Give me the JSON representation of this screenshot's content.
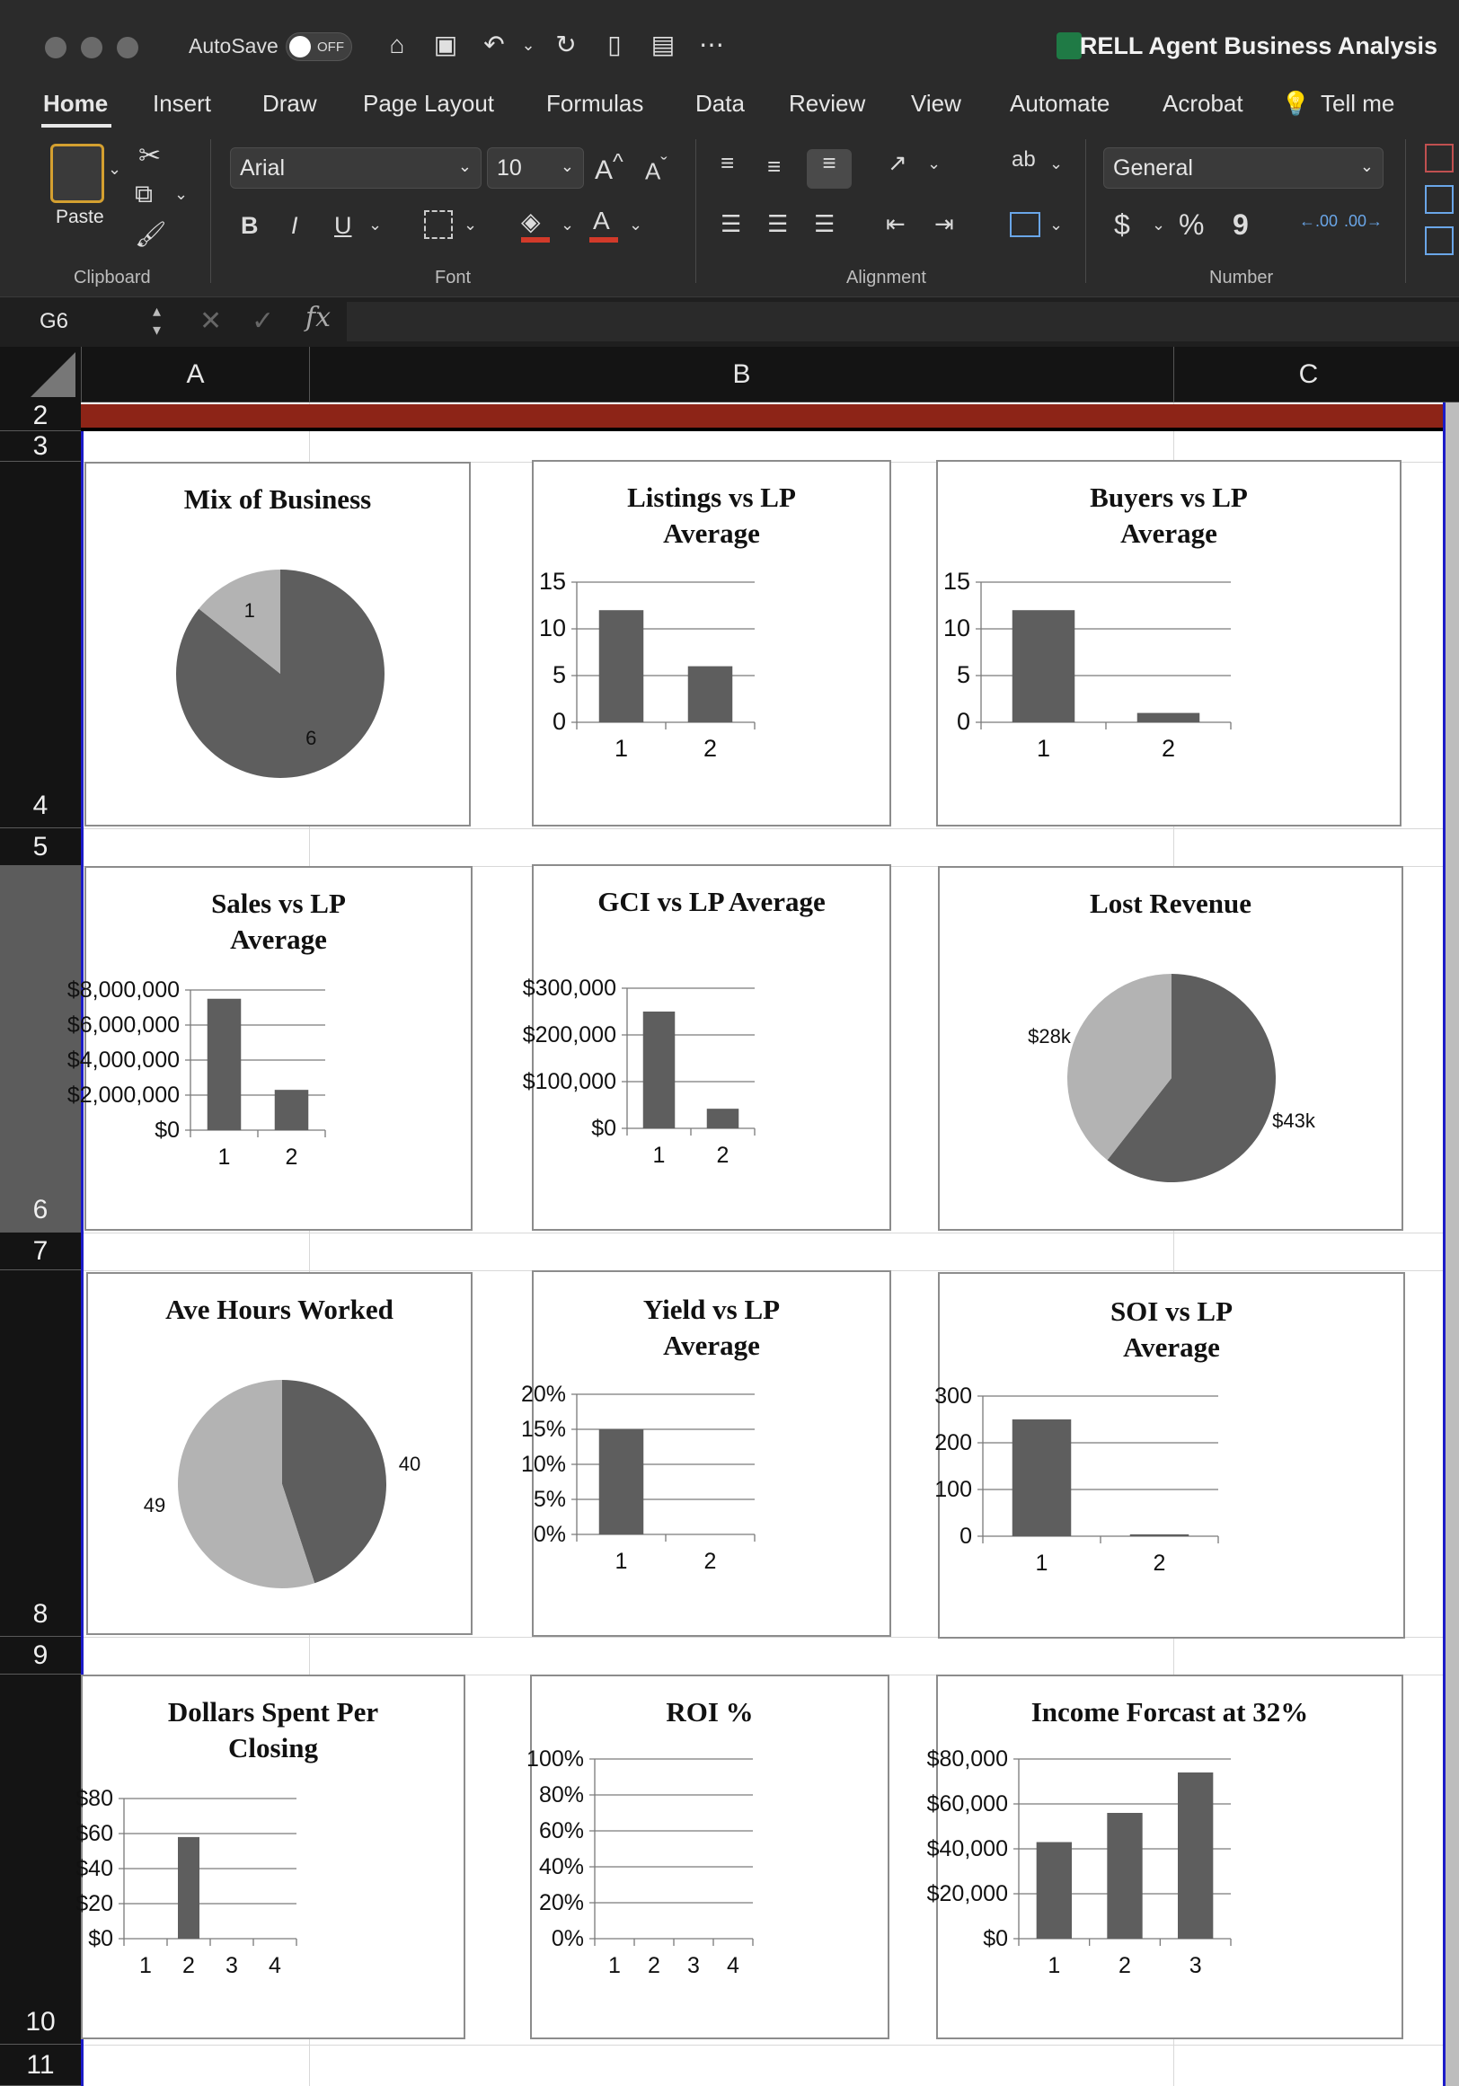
{
  "titlebar": {
    "autosave_label": "AutoSave",
    "autosave_state": "OFF",
    "doc_title": "RELL Agent Business Analysis",
    "quick_access": [
      "home-icon",
      "save-icon",
      "undo-icon",
      "redo-icon",
      "new-file-icon",
      "save-as-icon",
      "more-icon"
    ]
  },
  "menu": {
    "tabs": [
      "Home",
      "Insert",
      "Draw",
      "Page Layout",
      "Formulas",
      "Data",
      "Review",
      "View",
      "Automate",
      "Acrobat"
    ],
    "active": "Home",
    "tell_me": "Tell me"
  },
  "ribbon": {
    "clipboard": {
      "paste_label": "Paste",
      "group_label": "Clipboard"
    },
    "font": {
      "family": "Arial",
      "size": "10",
      "bold": "B",
      "italic": "I",
      "underline": "U",
      "group_label": "Font"
    },
    "alignment": {
      "group_label": "Alignment"
    },
    "number": {
      "format": "General",
      "currency": "$",
      "percent": "%",
      "comma": "9",
      "group_label": "Number"
    }
  },
  "formula_bar": {
    "name_box": "G6",
    "fx": "fx",
    "formula": ""
  },
  "columns": [
    "A",
    "B",
    "C"
  ],
  "rows": [
    "2",
    "3",
    "4",
    "5",
    "6",
    "7",
    "8",
    "9",
    "10",
    "11"
  ],
  "colors": {
    "bar": "#5e5e5e",
    "pie_dark": "#5e5e5e",
    "pie_light": "#b3b3b3",
    "header_band": "#8d2417",
    "selection": "#1c1cc8"
  },
  "chart_data": [
    {
      "id": "mix",
      "type": "pie",
      "title": "Mix of Business",
      "values": [
        6,
        1
      ],
      "labels": [
        "6",
        "1"
      ]
    },
    {
      "id": "listings",
      "type": "bar",
      "title": "Listings vs LP Average",
      "categories": [
        "1",
        "2"
      ],
      "values": [
        12,
        6
      ],
      "ylim": [
        0,
        15
      ],
      "ticks": [
        0,
        5,
        10,
        15
      ],
      "tick_labels": [
        "0",
        "5",
        "10",
        "15"
      ]
    },
    {
      "id": "buyers",
      "type": "bar",
      "title": "Buyers vs LP Average",
      "categories": [
        "1",
        "2"
      ],
      "values": [
        12,
        1
      ],
      "ylim": [
        0,
        15
      ],
      "ticks": [
        0,
        5,
        10,
        15
      ],
      "tick_labels": [
        "0",
        "5",
        "10",
        "15"
      ]
    },
    {
      "id": "sales",
      "type": "bar",
      "title": "Sales vs LP Average",
      "categories": [
        "1",
        "2"
      ],
      "values": [
        7500000,
        2300000
      ],
      "ylim": [
        0,
        8000000
      ],
      "ticks": [
        0,
        2000000,
        4000000,
        6000000,
        8000000
      ],
      "tick_labels": [
        "$0",
        "$2,000,000",
        "$4,000,000",
        "$6,000,000",
        "$8,000,000"
      ]
    },
    {
      "id": "gci",
      "type": "bar",
      "title": "GCI vs LP Average",
      "categories": [
        "1",
        "2"
      ],
      "values": [
        250000,
        42000
      ],
      "ylim": [
        0,
        300000
      ],
      "ticks": [
        0,
        100000,
        200000,
        300000
      ],
      "tick_labels": [
        "$0",
        "$100,000",
        "$200,000",
        "$300,000"
      ]
    },
    {
      "id": "lost",
      "type": "pie",
      "title": "Lost Revenue",
      "values": [
        43,
        28
      ],
      "labels": [
        "$43k",
        "$28k"
      ]
    },
    {
      "id": "hours",
      "type": "pie",
      "title": "Ave Hours Worked",
      "values": [
        40,
        49
      ],
      "labels": [
        "40",
        "49"
      ]
    },
    {
      "id": "yield",
      "type": "bar",
      "title": "Yield vs LP Average",
      "categories": [
        "1",
        "2"
      ],
      "values": [
        0.15,
        0
      ],
      "ylim": [
        0,
        0.2
      ],
      "ticks": [
        0,
        0.05,
        0.1,
        0.15,
        0.2
      ],
      "tick_labels": [
        "0%",
        "5%",
        "10%",
        "15%",
        "20%"
      ]
    },
    {
      "id": "soi",
      "type": "bar",
      "title": "SOI vs LP Average",
      "categories": [
        "1",
        "2"
      ],
      "values": [
        250,
        4
      ],
      "ylim": [
        0,
        300
      ],
      "ticks": [
        0,
        100,
        200,
        300
      ],
      "tick_labels": [
        "0",
        "100",
        "200",
        "300"
      ]
    },
    {
      "id": "dollars",
      "type": "bar",
      "title": "Dollars Spent Per Closing",
      "categories": [
        "1",
        "2",
        "3",
        "4"
      ],
      "values": [
        0,
        58,
        0,
        0
      ],
      "ylim": [
        0,
        80
      ],
      "ticks": [
        0,
        20,
        40,
        60,
        80
      ],
      "tick_labels": [
        "$0",
        "$20",
        "$40",
        "$60",
        "$80"
      ]
    },
    {
      "id": "roi",
      "type": "bar",
      "title": "ROI %",
      "categories": [
        "1",
        "2",
        "3",
        "4"
      ],
      "values": [
        0,
        0,
        0,
        0
      ],
      "ylim": [
        0,
        1
      ],
      "ticks": [
        0,
        0.2,
        0.4,
        0.6,
        0.8,
        1
      ],
      "tick_labels": [
        "0%",
        "20%",
        "40%",
        "60%",
        "80%",
        "100%"
      ]
    },
    {
      "id": "income",
      "type": "bar",
      "title": "Income Forcast at 32%",
      "categories": [
        "1",
        "2",
        "3"
      ],
      "values": [
        43000,
        56000,
        74000
      ],
      "ylim": [
        0,
        80000
      ],
      "ticks": [
        0,
        20000,
        40000,
        60000,
        80000
      ],
      "tick_labels": [
        "$0",
        "$20,000",
        "$40,000",
        "$60,000",
        "$80,000"
      ]
    }
  ]
}
